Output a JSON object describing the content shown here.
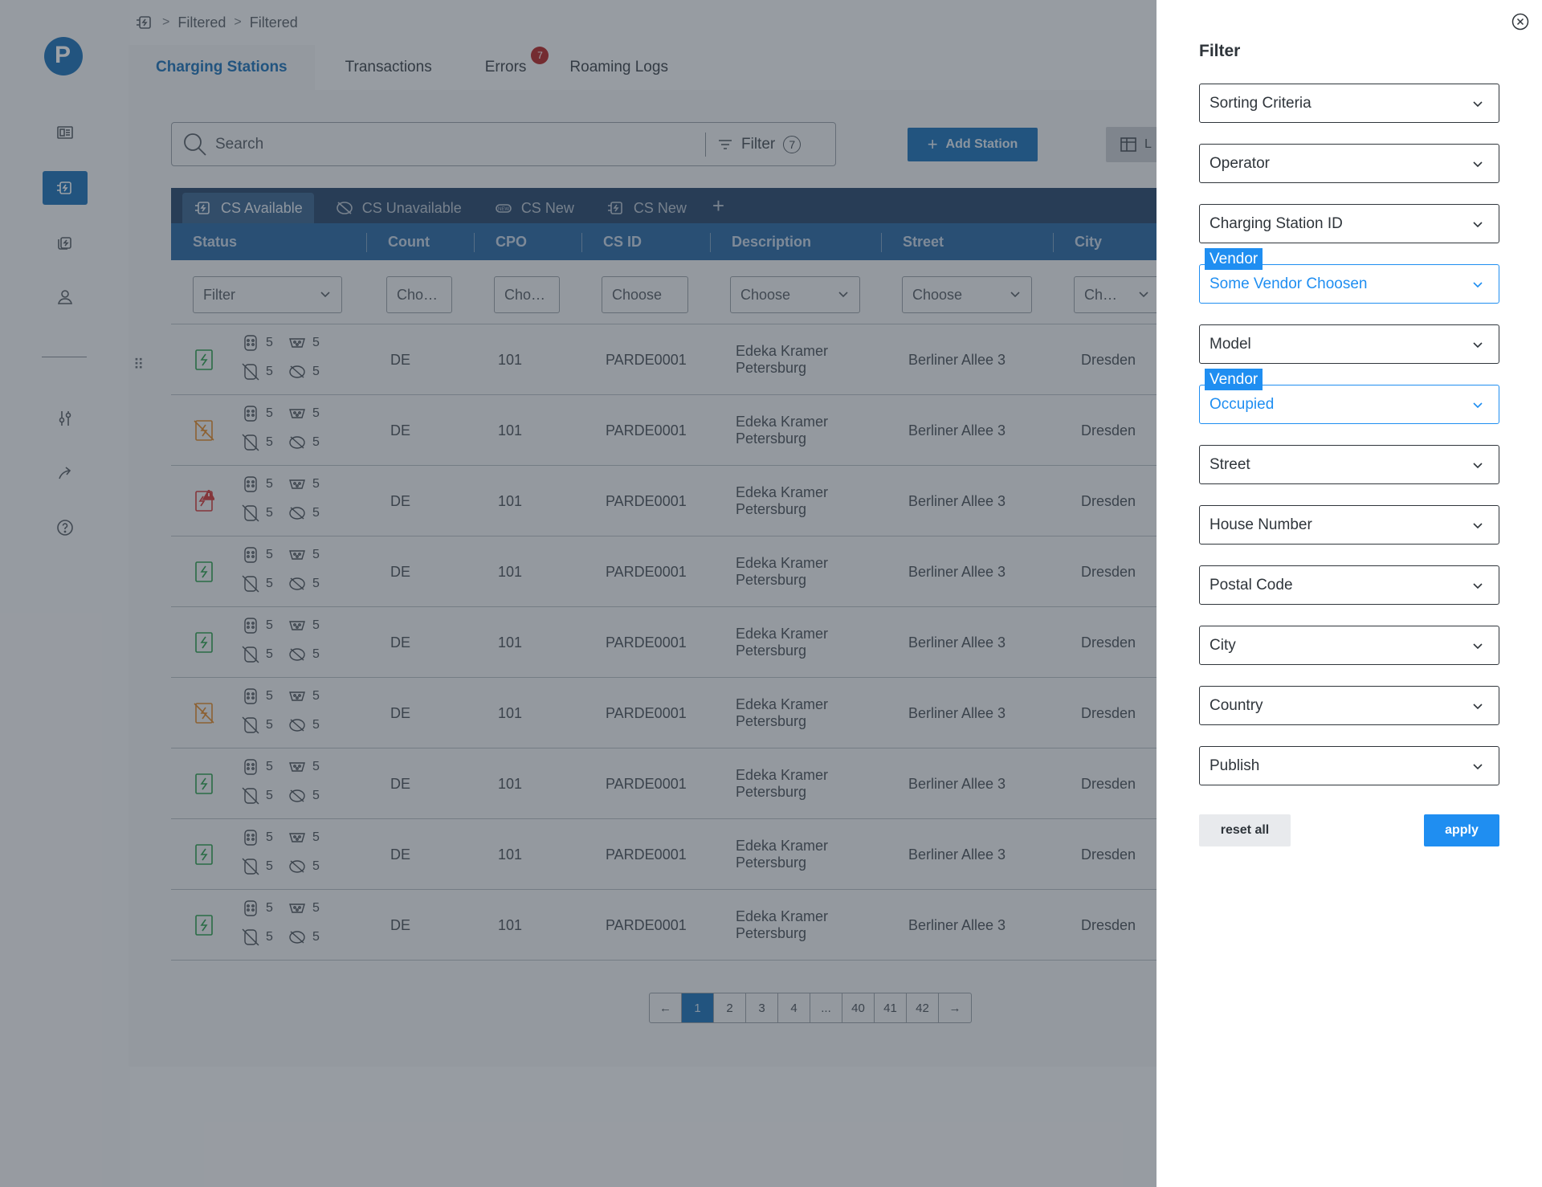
{
  "breadcrumb": {
    "items": [
      "Filtered",
      "Filtered"
    ]
  },
  "tabs": [
    {
      "label": "Charging Stations"
    },
    {
      "label": "Transactions"
    },
    {
      "label": "Errors",
      "badge": "7"
    },
    {
      "label": "Roaming Logs"
    }
  ],
  "search": {
    "placeholder": "Search",
    "filter_label": "Filter",
    "filter_count": "7"
  },
  "toolbar": {
    "add_label": "Add Station",
    "layout_label": "L"
  },
  "view_tabs": [
    {
      "label": "CS Available"
    },
    {
      "label": "CS Unavailable"
    },
    {
      "label": "CS New"
    },
    {
      "label": "CS New"
    }
  ],
  "columns": [
    "Status",
    "Count",
    "CPO",
    "CS ID",
    "Description",
    "Street",
    "City"
  ],
  "column_filters": [
    "Filter",
    "Cho…",
    "Cho…",
    "Choose",
    "Choose",
    "Choose",
    "Ch…"
  ],
  "rows": [
    {
      "status": "available",
      "c1": "5",
      "c2": "5",
      "c3": "5",
      "c4": "5",
      "country": "DE",
      "cpo": "101",
      "cs_id": "PARDE0001",
      "desc1": "Edeka Kramer",
      "desc2": "Petersburg",
      "street": "Berliner Allee 3",
      "city": "Dresden"
    },
    {
      "status": "unavailable",
      "c1": "5",
      "c2": "5",
      "c3": "5",
      "c4": "5",
      "country": "DE",
      "cpo": "101",
      "cs_id": "PARDE0001",
      "desc1": "Edeka Kramer",
      "desc2": "Petersburg",
      "street": "Berliner Allee 3",
      "city": "Dresden"
    },
    {
      "status": "error",
      "c1": "5",
      "c2": "5",
      "c3": "5",
      "c4": "5",
      "country": "DE",
      "cpo": "101",
      "cs_id": "PARDE0001",
      "desc1": "Edeka Kramer",
      "desc2": "Petersburg",
      "street": "Berliner Allee 3",
      "city": "Dresden"
    },
    {
      "status": "available",
      "c1": "5",
      "c2": "5",
      "c3": "5",
      "c4": "5",
      "country": "DE",
      "cpo": "101",
      "cs_id": "PARDE0001",
      "desc1": "Edeka Kramer",
      "desc2": "Petersburg",
      "street": "Berliner Allee 3",
      "city": "Dresden"
    },
    {
      "status": "available",
      "c1": "5",
      "c2": "5",
      "c3": "5",
      "c4": "5",
      "country": "DE",
      "cpo": "101",
      "cs_id": "PARDE0001",
      "desc1": "Edeka Kramer",
      "desc2": "Petersburg",
      "street": "Berliner Allee 3",
      "city": "Dresden"
    },
    {
      "status": "unavailable",
      "c1": "5",
      "c2": "5",
      "c3": "5",
      "c4": "5",
      "country": "DE",
      "cpo": "101",
      "cs_id": "PARDE0001",
      "desc1": "Edeka Kramer",
      "desc2": "Petersburg",
      "street": "Berliner Allee 3",
      "city": "Dresden"
    },
    {
      "status": "available",
      "c1": "5",
      "c2": "5",
      "c3": "5",
      "c4": "5",
      "country": "DE",
      "cpo": "101",
      "cs_id": "PARDE0001",
      "desc1": "Edeka Kramer",
      "desc2": "Petersburg",
      "street": "Berliner Allee 3",
      "city": "Dresden"
    },
    {
      "status": "available",
      "c1": "5",
      "c2": "5",
      "c3": "5",
      "c4": "5",
      "country": "DE",
      "cpo": "101",
      "cs_id": "PARDE0001",
      "desc1": "Edeka Kramer",
      "desc2": "Petersburg",
      "street": "Berliner Allee 3",
      "city": "Dresden"
    },
    {
      "status": "available",
      "c1": "5",
      "c2": "5",
      "c3": "5",
      "c4": "5",
      "country": "DE",
      "cpo": "101",
      "cs_id": "PARDE0001",
      "desc1": "Edeka Kramer",
      "desc2": "Petersburg",
      "street": "Berliner Allee 3",
      "city": "Dresden"
    }
  ],
  "pagination": {
    "prev": "←",
    "next": "→",
    "pages": [
      "1",
      "2",
      "3",
      "4",
      "...",
      "40",
      "41",
      "42"
    ],
    "current": "1"
  },
  "filter_panel": {
    "title": "Filter",
    "fields": [
      {
        "value": "Sorting Criteria"
      },
      {
        "value": "Operator"
      },
      {
        "value": "Charging Station ID"
      },
      {
        "label": "Vendor",
        "value": "Some Vendor Choosen"
      },
      {
        "value": "Model"
      },
      {
        "label": "Vendor",
        "value": "Occupied"
      },
      {
        "value": "Street"
      },
      {
        "value": "House Number"
      },
      {
        "value": "Postal Code"
      },
      {
        "value": "City"
      },
      {
        "value": "Country"
      },
      {
        "value": "Publish"
      }
    ],
    "reset_label": "reset all",
    "apply_label": "apply"
  },
  "colors": {
    "primary": "#1f74b8",
    "accent": "#1f8ef1",
    "available": "#2e9e4f",
    "unavailable": "#e08a2c",
    "error": "#d23c3c",
    "badge": "#b52a2a"
  }
}
